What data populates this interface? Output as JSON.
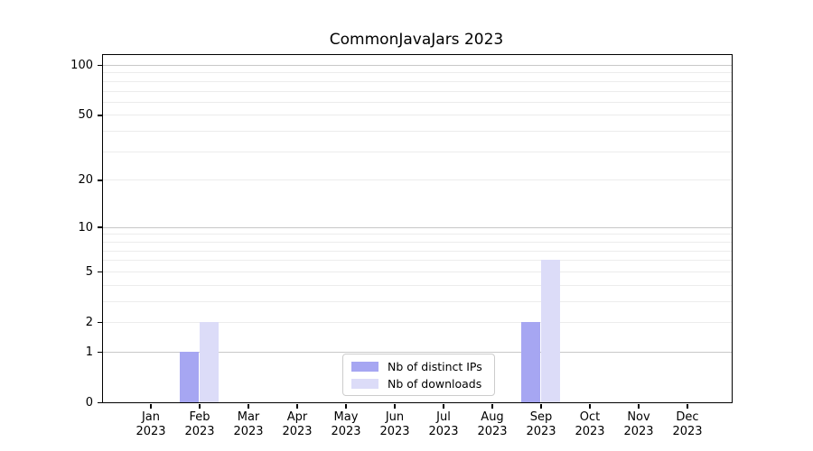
{
  "title": "CommonJavaJars 2023",
  "legend": {
    "position": "lower center",
    "entries": [
      {
        "label": "Nb of distinct IPs",
        "color": "#a6a6f2"
      },
      {
        "label": "Nb of downloads",
        "color": "#dcdcf8"
      }
    ]
  },
  "chart_data": {
    "type": "bar",
    "title": "CommonJavaJars 2023",
    "categories": [
      "Jan",
      "Feb",
      "Mar",
      "Apr",
      "May",
      "Jun",
      "Jul",
      "Aug",
      "Sep",
      "Oct",
      "Nov",
      "Dec"
    ],
    "category_year": "2023",
    "series": [
      {
        "name": "Nb of distinct IPs",
        "color": "#a6a6f2",
        "values": [
          0,
          1,
          0,
          0,
          0,
          0,
          0,
          0,
          2,
          0,
          0,
          0
        ]
      },
      {
        "name": "Nb of downloads",
        "color": "#dcdcf8",
        "values": [
          0,
          2,
          0,
          0,
          0,
          0,
          0,
          0,
          6,
          0,
          0,
          0
        ]
      }
    ],
    "xlabel": "",
    "ylabel": "",
    "yscale": "log1p",
    "ylim": [
      0,
      100
    ],
    "yticks": [
      0,
      1,
      2,
      5,
      10,
      20,
      50,
      100
    ],
    "major_gridlines": [
      1,
      10,
      100
    ],
    "minor_gridlines": [
      2,
      3,
      4,
      5,
      6,
      7,
      8,
      9,
      20,
      30,
      40,
      50,
      60,
      70,
      80,
      90
    ],
    "grid": true,
    "legend_position": "lower center",
    "colors": {
      "bar_distinct_ips": "#a6a6f2",
      "bar_downloads": "#dcdcf8",
      "major_grid": "#c8c8c8",
      "minor_grid": "#ececec",
      "axis": "#000000",
      "background": "#ffffff"
    }
  }
}
